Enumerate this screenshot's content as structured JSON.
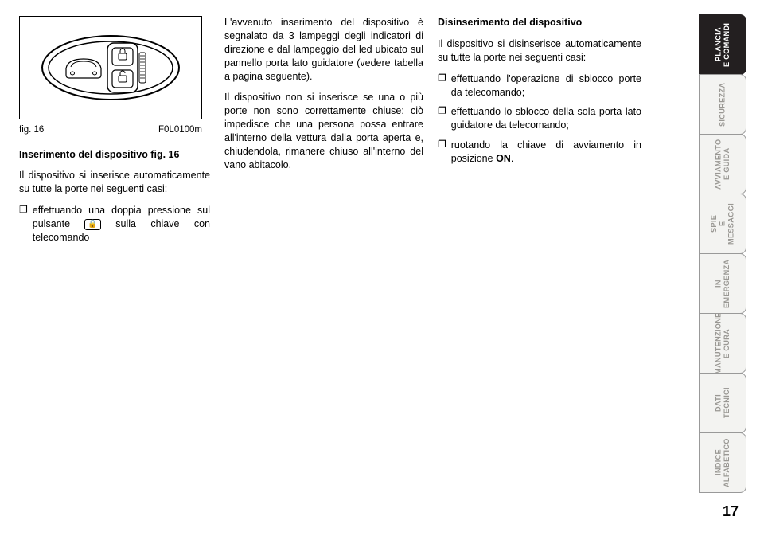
{
  "figure": {
    "caption_left": "fig. 16",
    "caption_right": "F0L0100m"
  },
  "col1": {
    "heading": "Inserimento del dispositivo fig. 16",
    "para1": "Il dispositivo si inserisce automaticamente su tutte la porte nei seguenti casi:",
    "bullet1": "effettuando una doppia pressione sul pulsante ",
    "bullet1_after": " sulla chiave con telecomando",
    "lock_glyph": "🔒"
  },
  "col2": {
    "para1": "L'avvenuto inserimento del dispositivo è segnalato da 3 lampeggi degli indicatori di direzione e dal lampeggio del led ubicato sul pannello porta lato guidatore (vedere tabella a pagina seguente).",
    "para2": "Il dispositivo non si inserisce se una o più porte non sono correttamente chiuse: ciò impedisce che una persona possa entrare all'interno della vettura dalla porta aperta e, chiudendola, rimanere chiuso all'interno del vano abitacolo."
  },
  "col3": {
    "heading": "Disinserimento del dispositivo",
    "para1": "Il dispositivo si disinserisce automaticamente su tutte la porte nei seguenti casi:",
    "bullet1": "effettuando l'operazione di sblocco porte da telecomando;",
    "bullet2": "effettuando lo sblocco della sola porta lato guidatore da telecomando;",
    "bullet3": "ruotando la chiave di avviamento in posizione ",
    "bullet3_bold": "ON",
    "bullet3_after": "."
  },
  "tabs": {
    "t1": "PLANCIA\nE COMANDI",
    "t2": "SICUREZZA",
    "t3": "AVVIAMENTO\nE GUIDA",
    "t4": "SPIE\nE MESSAGGI",
    "t5": "IN EMERGENZA",
    "t6": "MANUTENZIONE\nE CURA",
    "t7": "DATI TECNICI",
    "t8": "INDICE\nALFABETICO"
  },
  "page_number": "17"
}
